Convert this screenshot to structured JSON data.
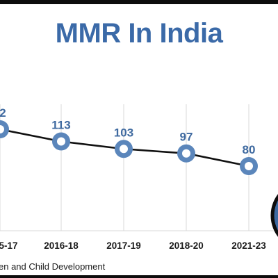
{
  "title": "MMR In India",
  "source_text": "en and Child Development",
  "colors": {
    "title": "#3b6aa8",
    "marker_fill": "#5b86bb",
    "marker_center": "#ffffff",
    "line": "#111111",
    "data_label": "#3f6aa0",
    "grid": "#d9d9d9",
    "accent_circle": "#3e6aa2"
  },
  "chart_data": {
    "type": "line",
    "title": "MMR In India",
    "categories": [
      "5-17",
      "2016-18",
      "2017-19",
      "2018-20",
      "2021-23"
    ],
    "series": [
      {
        "values": [
          null,
          113,
          103,
          97,
          80
        ]
      }
    ],
    "data_labels": [
      "2",
      "113",
      "103",
      "97",
      "80"
    ],
    "xlabel": "",
    "ylabel": "",
    "grid": "vertical",
    "legend": "none"
  }
}
